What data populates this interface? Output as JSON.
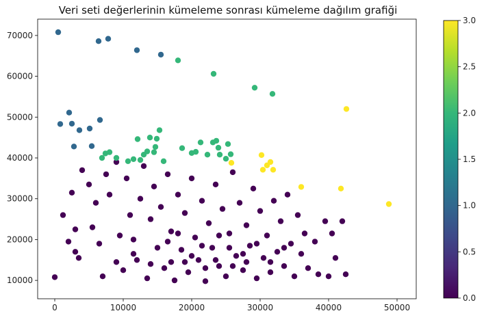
{
  "chart_data": {
    "type": "scatter",
    "title": "Veri seti değerlerinin kümeleme sonrası kümeleme dağılım grafiği",
    "xlabel": "",
    "ylabel": "",
    "xlim": [
      -2500,
      52800
    ],
    "ylim": [
      5500,
      74000
    ],
    "x_ticks": [
      0,
      10000,
      20000,
      30000,
      40000,
      50000
    ],
    "x_tick_labels": [
      "0",
      "10000",
      "20000",
      "30000",
      "40000",
      "50000"
    ],
    "y_ticks": [
      10000,
      20000,
      30000,
      40000,
      50000,
      60000,
      70000
    ],
    "y_tick_labels": [
      "10000",
      "20000",
      "30000",
      "40000",
      "50000",
      "60000",
      "70000"
    ],
    "grid": false,
    "colormap": "viridis",
    "colorbar": {
      "min": 0.0,
      "max": 3.0,
      "ticks": [
        0.0,
        0.5,
        1.0,
        1.5,
        2.0,
        2.5,
        3.0
      ],
      "tick_labels": [
        "0.0",
        "0.5",
        "1.0",
        "1.5",
        "2.0",
        "2.5",
        "3.0"
      ]
    },
    "cluster_colors": [
      "#440154",
      "#31688e",
      "#35b779",
      "#fde725"
    ],
    "series": [
      {
        "cluster": 0,
        "points": [
          [
            0,
            10800
          ],
          [
            1200,
            26000
          ],
          [
            2000,
            19500
          ],
          [
            2500,
            31500
          ],
          [
            3000,
            22500
          ],
          [
            3500,
            15500
          ],
          [
            4000,
            37000
          ],
          [
            5000,
            33500
          ],
          [
            5500,
            23000
          ],
          [
            6000,
            29000
          ],
          [
            7000,
            11000
          ],
          [
            7500,
            36000
          ],
          [
            8000,
            31000
          ],
          [
            9000,
            39000
          ],
          [
            9500,
            21000
          ],
          [
            10000,
            12500
          ],
          [
            10500,
            35000
          ],
          [
            11000,
            26000
          ],
          [
            11500,
            20000
          ],
          [
            12000,
            15000
          ],
          [
            12500,
            30000
          ],
          [
            13000,
            38000
          ],
          [
            13500,
            10500
          ],
          [
            14000,
            25000
          ],
          [
            14500,
            33000
          ],
          [
            15000,
            18000
          ],
          [
            15500,
            28000
          ],
          [
            16000,
            13000
          ],
          [
            16500,
            36000
          ],
          [
            17000,
            22000
          ],
          [
            17500,
            10000
          ],
          [
            18000,
            31000
          ],
          [
            18500,
            17500
          ],
          [
            19000,
            26500
          ],
          [
            19500,
            12000
          ],
          [
            20000,
            35000
          ],
          [
            20500,
            20500
          ],
          [
            21000,
            15000
          ],
          [
            21500,
            29500
          ],
          [
            22000,
            9800
          ],
          [
            22500,
            24000
          ],
          [
            23000,
            18000
          ],
          [
            23500,
            33500
          ],
          [
            24000,
            13500
          ],
          [
            24500,
            27500
          ],
          [
            25000,
            11000
          ],
          [
            25500,
            21500
          ],
          [
            26000,
            36500
          ],
          [
            26500,
            16000
          ],
          [
            27000,
            29000
          ],
          [
            27500,
            12500
          ],
          [
            28000,
            23500
          ],
          [
            28500,
            18500
          ],
          [
            29000,
            32500
          ],
          [
            29500,
            10500
          ],
          [
            30000,
            27000
          ],
          [
            30500,
            15500
          ],
          [
            31000,
            21000
          ],
          [
            31500,
            12000
          ],
          [
            32000,
            29500
          ],
          [
            32500,
            17000
          ],
          [
            33000,
            24500
          ],
          [
            33500,
            13500
          ],
          [
            34000,
            31000
          ],
          [
            34500,
            19000
          ],
          [
            35000,
            11000
          ],
          [
            35500,
            26000
          ],
          [
            36000,
            16500
          ],
          [
            36500,
            21500
          ],
          [
            37000,
            13000
          ],
          [
            38000,
            19500
          ],
          [
            38500,
            11500
          ],
          [
            39500,
            24500
          ],
          [
            40000,
            11000
          ],
          [
            40500,
            21500
          ],
          [
            41000,
            15500
          ],
          [
            42000,
            24500
          ],
          [
            42500,
            11500
          ],
          [
            3000,
            17000
          ],
          [
            6500,
            19000
          ],
          [
            9000,
            14500
          ],
          [
            11500,
            16500
          ],
          [
            14000,
            14000
          ],
          [
            16500,
            19500
          ],
          [
            19000,
            14500
          ],
          [
            21500,
            18500
          ],
          [
            23500,
            15000
          ],
          [
            25500,
            18000
          ],
          [
            27500,
            16500
          ],
          [
            29500,
            19000
          ],
          [
            31500,
            14500
          ],
          [
            33500,
            18000
          ],
          [
            24000,
            21000
          ],
          [
            18000,
            21500
          ],
          [
            20000,
            16000
          ],
          [
            22000,
            13000
          ],
          [
            17000,
            14500
          ],
          [
            26000,
            13500
          ],
          [
            28000,
            14500
          ]
        ]
      },
      {
        "cluster": 1,
        "points": [
          [
            500,
            70800
          ],
          [
            6400,
            68600
          ],
          [
            7800,
            69200
          ],
          [
            12000,
            66400
          ],
          [
            15500,
            65300
          ],
          [
            800,
            48300
          ],
          [
            2100,
            51100
          ],
          [
            2500,
            48400
          ],
          [
            2800,
            42800
          ],
          [
            3600,
            46800
          ],
          [
            5100,
            47200
          ],
          [
            5400,
            42900
          ],
          [
            6600,
            49300
          ]
        ]
      },
      {
        "cluster": 2,
        "points": [
          [
            18000,
            63900
          ],
          [
            23200,
            60600
          ],
          [
            29200,
            57200
          ],
          [
            31800,
            55700
          ],
          [
            6900,
            40000
          ],
          [
            7400,
            41100
          ],
          [
            8000,
            41400
          ],
          [
            9000,
            40000
          ],
          [
            10700,
            39200
          ],
          [
            11500,
            39700
          ],
          [
            12100,
            44600
          ],
          [
            12500,
            39500
          ],
          [
            13000,
            40800
          ],
          [
            13500,
            41600
          ],
          [
            13900,
            45000
          ],
          [
            14500,
            41400
          ],
          [
            14700,
            42700
          ],
          [
            14900,
            44700
          ],
          [
            15300,
            46800
          ],
          [
            15900,
            39200
          ],
          [
            18600,
            42400
          ],
          [
            20000,
            41200
          ],
          [
            20600,
            41500
          ],
          [
            21300,
            43800
          ],
          [
            22300,
            40800
          ],
          [
            23100,
            43800
          ],
          [
            23600,
            44200
          ],
          [
            23900,
            42500
          ],
          [
            24100,
            40800
          ],
          [
            25000,
            39800
          ],
          [
            25300,
            43400
          ],
          [
            25700,
            40900
          ]
        ]
      },
      {
        "cluster": 3,
        "points": [
          [
            42600,
            52000
          ],
          [
            30200,
            40700
          ],
          [
            25800,
            38800
          ],
          [
            31500,
            39000
          ],
          [
            31000,
            38200
          ],
          [
            31900,
            37100
          ],
          [
            30400,
            37100
          ],
          [
            36000,
            32900
          ],
          [
            41800,
            32500
          ],
          [
            48800,
            28700
          ]
        ]
      }
    ]
  }
}
